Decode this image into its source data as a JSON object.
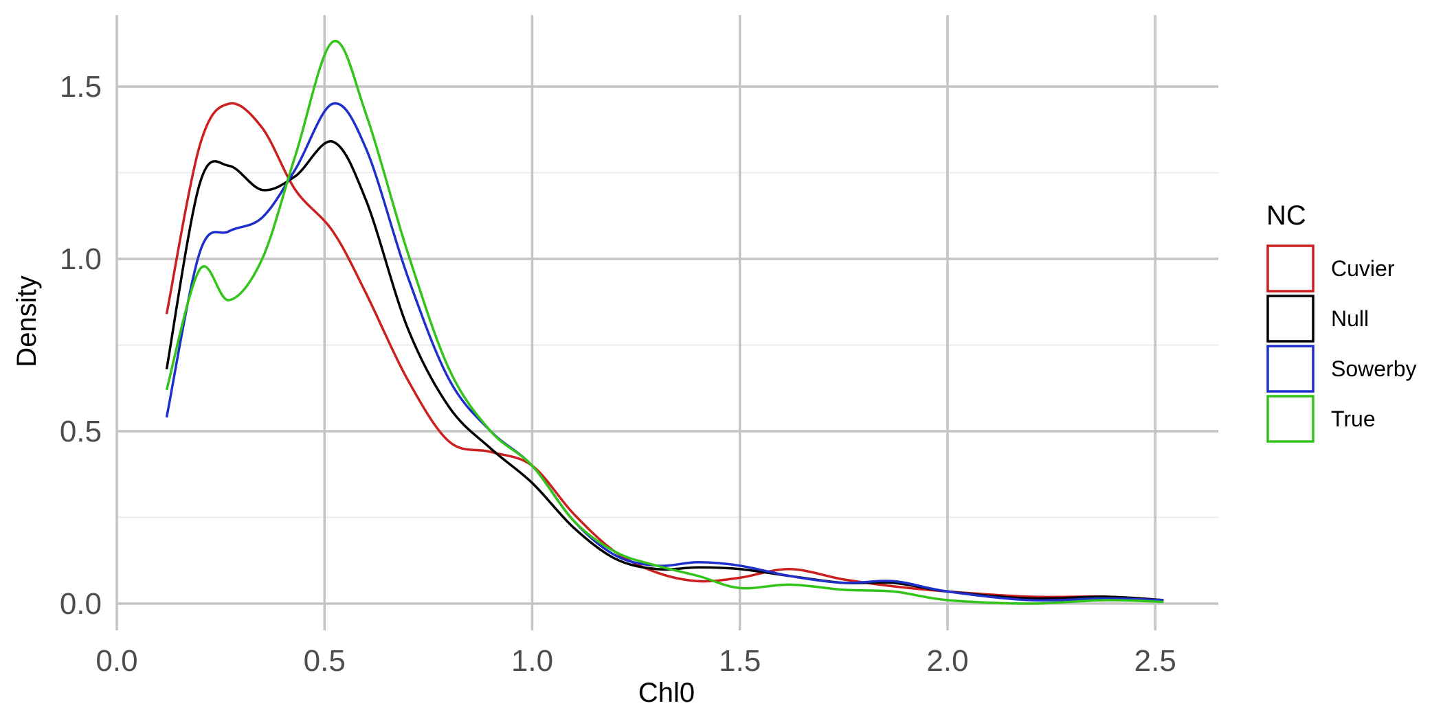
{
  "chart_data": {
    "type": "line",
    "title": "",
    "xlabel": "Chl0",
    "ylabel": "Density",
    "xlim": [
      0,
      2.65
    ],
    "ylim": [
      -0.06,
      1.7
    ],
    "x_ticks": [
      "0.0",
      "0.5",
      "1.0",
      "1.5",
      "2.0",
      "2.5"
    ],
    "y_ticks": [
      "0.0",
      "0.5",
      "1.0",
      "1.5"
    ],
    "grid": true,
    "legend": {
      "title": "NC",
      "position": "right"
    },
    "x": [
      0.12,
      0.2,
      0.27,
      0.35,
      0.43,
      0.52,
      0.6,
      0.7,
      0.8,
      0.9,
      1.0,
      1.1,
      1.2,
      1.3,
      1.4,
      1.5,
      1.62,
      1.75,
      1.87,
      2.0,
      2.2,
      2.38,
      2.52
    ],
    "series": [
      {
        "name": "Cuvier",
        "color": "#cc1f1f",
        "values": [
          0.84,
          1.33,
          1.45,
          1.38,
          1.2,
          1.08,
          0.9,
          0.65,
          0.47,
          0.44,
          0.4,
          0.26,
          0.15,
          0.09,
          0.065,
          0.075,
          0.1,
          0.07,
          0.05,
          0.035,
          0.02,
          0.02,
          0.01
        ]
      },
      {
        "name": "Null",
        "color": "#000000",
        "values": [
          0.68,
          1.22,
          1.27,
          1.2,
          1.24,
          1.34,
          1.17,
          0.8,
          0.57,
          0.45,
          0.35,
          0.22,
          0.13,
          0.1,
          0.105,
          0.1,
          0.08,
          0.06,
          0.06,
          0.035,
          0.015,
          0.02,
          0.01
        ]
      },
      {
        "name": "Sowerby",
        "color": "#1f2fcc",
        "values": [
          0.54,
          1.02,
          1.08,
          1.12,
          1.26,
          1.45,
          1.32,
          0.95,
          0.65,
          0.5,
          0.4,
          0.24,
          0.14,
          0.11,
          0.12,
          0.11,
          0.08,
          0.06,
          0.065,
          0.035,
          0.01,
          0.015,
          0.01
        ]
      },
      {
        "name": "True",
        "color": "#33c41a",
        "values": [
          0.62,
          0.97,
          0.88,
          1.0,
          1.3,
          1.63,
          1.42,
          1.02,
          0.68,
          0.5,
          0.4,
          0.24,
          0.15,
          0.11,
          0.08,
          0.045,
          0.055,
          0.04,
          0.035,
          0.01,
          0.0,
          0.01,
          0.005
        ]
      }
    ]
  }
}
